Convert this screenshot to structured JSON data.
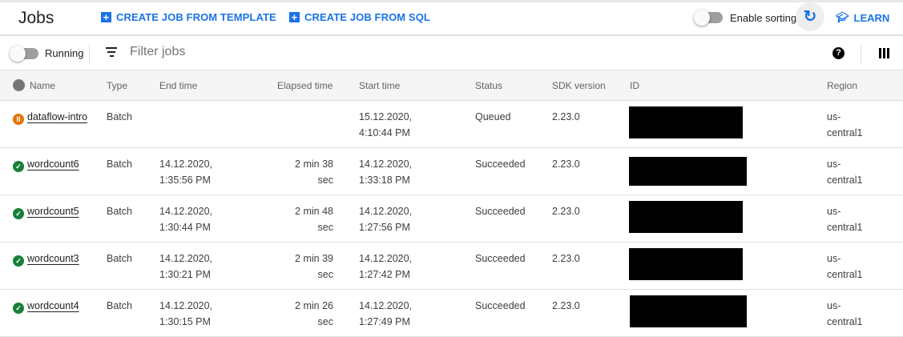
{
  "header": {
    "title": "Jobs",
    "create_template": "CREATE JOB FROM TEMPLATE",
    "create_sql": "CREATE JOB FROM SQL",
    "enable_sorting": "Enable sorting",
    "learn": "LEARN",
    "accent": "#1a73e8"
  },
  "filter": {
    "running_label": "Running",
    "placeholder": "Filter jobs",
    "help": "?"
  },
  "columns": [
    "Name",
    "Type",
    "End time",
    "Elapsed time",
    "Start time",
    "Status",
    "SDK version",
    "ID",
    "Region"
  ],
  "rows": [
    {
      "name": "dataflow-intro",
      "status_icon": "pause-icon",
      "type": "Batch",
      "end": "",
      "elapsed": "",
      "start": "15.12.2020, 4:10:44 PM",
      "status": "Queued",
      "sdk": "2.23.0",
      "region": "us-central1"
    },
    {
      "name": "wordcount6",
      "status_icon": "check-icon",
      "type": "Batch",
      "end": "14.12.2020, 1:35:56 PM",
      "elapsed": "2 min 38 sec",
      "start": "14.12.2020, 1:33:18 PM",
      "status": "Succeeded",
      "sdk": "2.23.0",
      "region": "us-central1"
    },
    {
      "name": "wordcount5",
      "status_icon": "check-icon",
      "type": "Batch",
      "end": "14.12.2020, 1:30:44 PM",
      "elapsed": "2 min 48 sec",
      "start": "14.12.2020, 1:27:56 PM",
      "status": "Succeeded",
      "sdk": "2.23.0",
      "region": "us-central1"
    },
    {
      "name": "wordcount3",
      "status_icon": "check-icon",
      "type": "Batch",
      "end": "14.12.2020, 1:30:21 PM",
      "elapsed": "2 min 39 sec",
      "start": "14.12.2020, 1:27:42 PM",
      "status": "Succeeded",
      "sdk": "2.23.0",
      "region": "us-central1"
    },
    {
      "name": "wordcount4",
      "status_icon": "check-icon",
      "type": "Batch",
      "end": "14.12.2020, 1:30:15 PM",
      "elapsed": "2 min 26 sec",
      "start": "14.12.2020, 1:27:49 PM",
      "status": "Succeeded",
      "sdk": "2.23.0",
      "region": "us-central1"
    }
  ],
  "status_colors": {
    "queued": "#e37400",
    "succeeded": "#188038"
  }
}
